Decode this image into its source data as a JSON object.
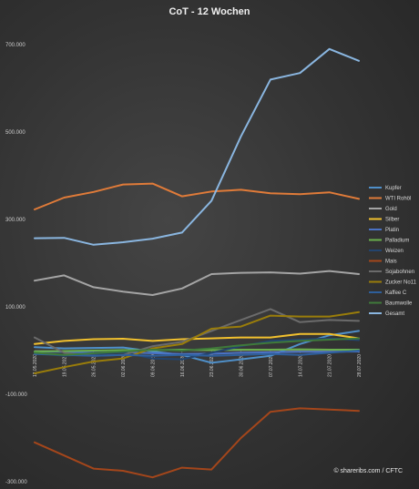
{
  "chart_data": {
    "type": "line",
    "title": "CoT - 12 Wochen",
    "source": "© shareribs.com / CFTC",
    "xlabel": "",
    "ylabel": "",
    "ylim": [
      -300000,
      700000
    ],
    "yticks": [
      -300000,
      -100000,
      100000,
      300000,
      500000,
      700000
    ],
    "ytick_labels": [
      "-300.000",
      "-100.000",
      "100.000",
      "300.000",
      "500.000",
      "700.000"
    ],
    "grid": false,
    "legend_position": "right",
    "categories": [
      "12.05.2020",
      "19.05.2020",
      "26.05.2020",
      "02.06.2020",
      "09.06.2020",
      "16.06.2020",
      "23.06.2020",
      "30.06.2020",
      "07.07.2020",
      "14.07.2020",
      "21.07.2020",
      "28.07.2020"
    ],
    "series": [
      {
        "name": "Kupfer",
        "color": "#4f8fc8",
        "values": [
          8000,
          5000,
          6000,
          7000,
          -2000,
          -10000,
          -28000,
          -20000,
          -12000,
          15000,
          35000,
          45000
        ]
      },
      {
        "name": "WTI Rohöl",
        "color": "#e07b39",
        "values": [
          323000,
          350000,
          363000,
          380000,
          382000,
          353000,
          364000,
          368000,
          360000,
          358000,
          362000,
          347000
        ]
      },
      {
        "name": "Gold",
        "color": "#a5a5a5",
        "values": [
          160000,
          172000,
          145000,
          135000,
          127000,
          142000,
          175000,
          178000,
          179000,
          176000,
          182000,
          175000
        ]
      },
      {
        "name": "Silber",
        "color": "#f2c12e",
        "values": [
          15000,
          22000,
          26000,
          27000,
          22000,
          26000,
          28000,
          30000,
          30000,
          38000,
          38000,
          28000
        ]
      },
      {
        "name": "Platin",
        "color": "#4a72c4",
        "values": [
          -2000,
          -3000,
          -5000,
          -4000,
          -6000,
          -8000,
          -7000,
          -5000,
          -4000,
          -3000,
          -3000,
          -2000
        ]
      },
      {
        "name": "Palladium",
        "color": "#6ab04c",
        "values": [
          -2000,
          -1000,
          0,
          1000,
          1000,
          2000,
          1000,
          2000,
          2000,
          3000,
          2000,
          2000
        ]
      },
      {
        "name": "Weizen",
        "color": "#23446e",
        "values": [
          -5000,
          -12000,
          -8000,
          -4000,
          -18000,
          -20000,
          -5000,
          10000,
          22000,
          25000,
          28000,
          24000
        ]
      },
      {
        "name": "Mais",
        "color": "#a4461b",
        "values": [
          -210000,
          -240000,
          -270000,
          -275000,
          -290000,
          -268000,
          -272000,
          -200000,
          -140000,
          -132000,
          -135000,
          -138000
        ]
      },
      {
        "name": "Sojabohnen",
        "color": "#6b6b6b",
        "values": [
          30000,
          -5000,
          -12000,
          -10000,
          10000,
          20000,
          45000,
          70000,
          95000,
          65000,
          70000,
          68000
        ]
      },
      {
        "name": "Zucker No11",
        "color": "#9a7d0a",
        "values": [
          -52000,
          -38000,
          -25000,
          -18000,
          5000,
          15000,
          50000,
          55000,
          80000,
          78000,
          78000,
          88000
        ]
      },
      {
        "name": "Kaffee C",
        "color": "#2e5f9b",
        "values": [
          -8000,
          -10000,
          -12000,
          -10000,
          -12000,
          -10000,
          -12000,
          -10000,
          -8000,
          -10000,
          -5000,
          0
        ]
      },
      {
        "name": "Baumwolle",
        "color": "#3f7a3a",
        "values": [
          -5000,
          -10000,
          -6000,
          -2000,
          2000,
          0,
          5000,
          12000,
          18000,
          22000,
          25000,
          28000
        ]
      },
      {
        "name": "Gesamt",
        "color": "#8ab6e0",
        "values": [
          257000,
          258000,
          242000,
          248000,
          256000,
          270000,
          343000,
          490000,
          620000,
          635000,
          690000,
          663000
        ]
      }
    ]
  }
}
